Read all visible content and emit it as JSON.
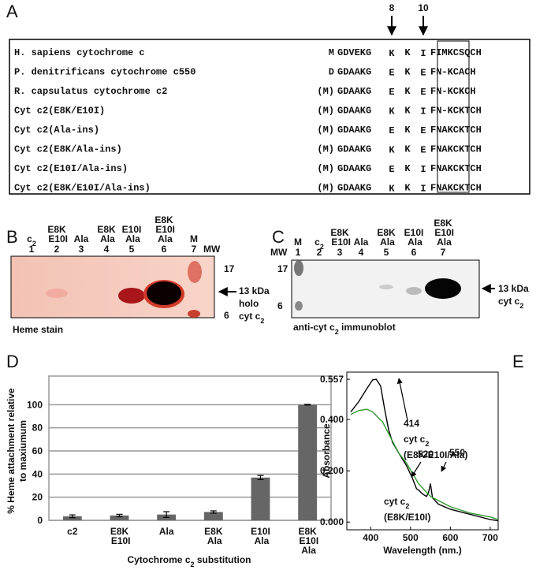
{
  "panel_a": {
    "label": "A",
    "arrows": [
      "8",
      "10"
    ],
    "rows": [
      {
        "name": "H. sapiens cytochrome c",
        "prefix": "M",
        "left": "GDVEKG",
        "p8": "K",
        "mid": "K",
        "p10": "I",
        "right": "FIMKCSQCH"
      },
      {
        "name": "P. denitrificans cytochrome c550",
        "prefix": "D",
        "left": "GDAAKG",
        "p8": "E",
        "mid": "K",
        "p10": "E",
        "right": "FN-KCACH"
      },
      {
        "name": "R. capsulatus cytochrome c2",
        "prefix": "(M)",
        "left": "GDAAKG",
        "p8": "E",
        "mid": "K",
        "p10": "E",
        "right": "FN-KCKCH"
      },
      {
        "name": "Cyt c2(E8K/E10I)",
        "prefix": "(M)",
        "left": "GDAAKG",
        "p8": "K",
        "mid": "K",
        "p10": "I",
        "right": "FN-KCKTCH"
      },
      {
        "name": "Cyt c2(Ala-ins)",
        "prefix": "(M)",
        "left": "GDAAKG",
        "p8": "E",
        "mid": "K",
        "p10": "E",
        "right": "FNAKCKTCH"
      },
      {
        "name": "Cyt c2(E8K/Ala-ins)",
        "prefix": "(M)",
        "left": "GDAAKG",
        "p8": "K",
        "mid": "K",
        "p10": "E",
        "right": "FNAKCKTCH"
      },
      {
        "name": "Cyt c2(E10I/Ala-ins)",
        "prefix": "(M)",
        "left": "GDAAKG",
        "p8": "E",
        "mid": "K",
        "p10": "I",
        "right": "FNAKCKTCH"
      },
      {
        "name": "Cyt c2(E8K/E10I/Ala-ins)",
        "prefix": "(M)",
        "left": "GDAAKG",
        "p8": "K",
        "mid": "K",
        "p10": "I",
        "right": "FNAKCKTCH"
      }
    ]
  },
  "panel_b": {
    "label": "B",
    "lanes": [
      {
        "label": {
          "text": "c",
          "sub": "2"
        },
        "number": "1"
      },
      {
        "label": "E8K E10I",
        "number": "2"
      },
      {
        "label": "Ala",
        "number": "3"
      },
      {
        "label": "E8K Ala",
        "number": "4"
      },
      {
        "label": "E10I Ala",
        "number": "5"
      },
      {
        "label": "E8K E10I Ala",
        "number": "6"
      },
      {
        "label": "M",
        "number": "7"
      }
    ],
    "mw_title": "MW",
    "mw": [
      "17",
      "6"
    ],
    "band": [
      "13 kDa",
      "holo",
      {
        "text": "cyt c",
        "sub": "2"
      }
    ],
    "caption": "Heme stain"
  },
  "panel_c": {
    "label": "C",
    "lanes": [
      {
        "label": "M",
        "number": "1"
      },
      {
        "label": {
          "text": "c",
          "sub": "2"
        },
        "number": "2"
      },
      {
        "label": "E8K E10I",
        "number": "3"
      },
      {
        "label": "Ala",
        "number": "4"
      },
      {
        "label": "E8K Ala",
        "number": "5"
      },
      {
        "label": "E10I Ala",
        "number": "6"
      },
      {
        "label": "E8K E10I Ala",
        "number": "7"
      }
    ],
    "mw_title": "MW",
    "mw": [
      "17",
      "6"
    ],
    "band": [
      "13 kDa",
      {
        "text": "cyt c",
        "sub": "2"
      }
    ],
    "caption": {
      "text": "anti-cyt c",
      "sub": "2",
      "after": " immunoblot"
    }
  },
  "chart_data": [
    {
      "type": "bar",
      "panel_label": "D",
      "categories": [
        "c2",
        "E8K E10I",
        "Ala",
        "E8K Ala",
        "E10I Ala",
        "E8K E10I Ala"
      ],
      "values": [
        3.5,
        4.2,
        5,
        7.2,
        37,
        100
      ],
      "errors": [
        1.2,
        1,
        2.5,
        1,
        1.8,
        0.3
      ],
      "color": "#666666",
      "ylim": [
        0,
        120
      ],
      "yticks": [
        0,
        20,
        40,
        60,
        80,
        100
      ],
      "grid": true,
      "y_label": [
        "% Heme attachment relative",
        "to maxiumum"
      ],
      "x_label": {
        "text": "Cytochrome c",
        "sub": "2",
        "after": " substitution"
      }
    },
    {
      "type": "line",
      "panel_label": "E",
      "x_label": "Wavelength (nm.)",
      "y_label": "Absorbance",
      "xlim": [
        340,
        720
      ],
      "xticks": [
        400,
        500,
        600,
        700
      ],
      "ylim": [
        -0.03,
        0.585
      ],
      "yticks": [
        {
          "value": 0.557,
          "label": "0.557"
        },
        {
          "value": 0.4,
          "label": "0.400"
        },
        {
          "value": 0.2,
          "label": "0.200"
        },
        {
          "value": 0,
          "label": "0.000"
        }
      ],
      "series": [
        {
          "color": "#000000",
          "x": [
            350,
            370,
            390,
            405,
            414,
            425,
            435,
            445,
            455,
            470,
            490,
            505,
            515,
            520,
            530,
            540,
            545,
            550,
            555,
            570,
            600,
            650,
            700,
            720
          ],
          "values": [
            0.43,
            0.47,
            0.52,
            0.555,
            0.557,
            0.53,
            0.44,
            0.36,
            0.31,
            0.27,
            0.22,
            0.17,
            0.13,
            0.125,
            0.11,
            0.1,
            0.115,
            0.15,
            0.095,
            0.07,
            0.05,
            0.03,
            0.01,
            0.005
          ]
        },
        {
          "color": "#2e9b2e",
          "x": [
            350,
            370,
            390,
            405,
            414,
            430,
            450,
            470,
            490,
            520,
            550,
            600,
            650,
            700,
            720
          ],
          "values": [
            0.42,
            0.435,
            0.44,
            0.43,
            0.415,
            0.39,
            0.33,
            0.27,
            0.23,
            0.15,
            0.1,
            0.06,
            0.035,
            0.02,
            0.01
          ]
        }
      ],
      "annotations": [
        "414",
        {
          "text": "cyt c",
          "sub": "2"
        },
        "(E8K/E10I/Ala)",
        "520",
        "550",
        {
          "text": "cyt c",
          "sub": "2"
        },
        "(E8K/E10I)"
      ]
    }
  ]
}
